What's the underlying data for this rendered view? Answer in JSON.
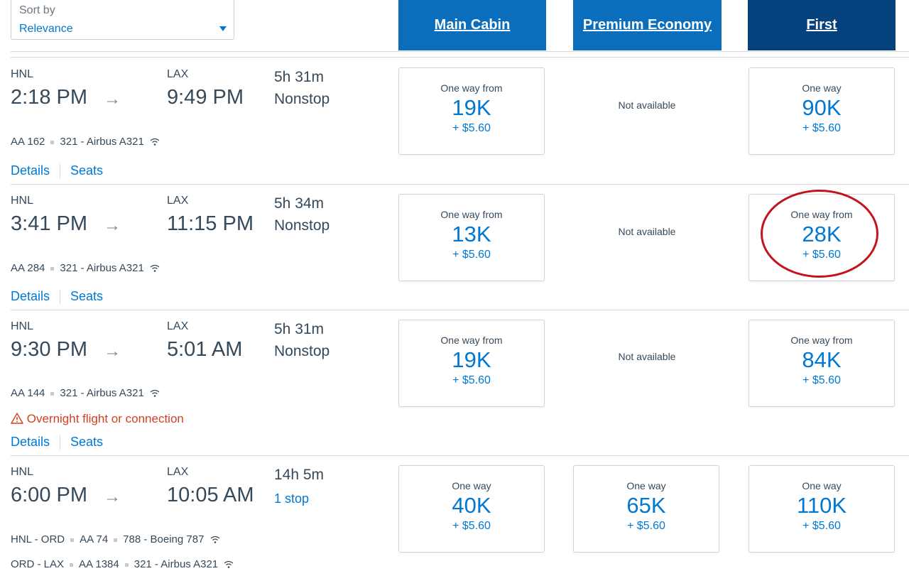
{
  "sort": {
    "label": "Sort by",
    "value": "Relevance"
  },
  "columns": {
    "main": "Main Cabin",
    "premium": "Premium Economy",
    "first": "First"
  },
  "rows": [
    {
      "origin": "HNL",
      "depart": "2:18 PM",
      "dest": "LAX",
      "arrive": "9:49 PM",
      "duration": "5h 31m",
      "stops": "Nonstop",
      "segments": [
        {
          "route": "",
          "flight": "AA 162",
          "aircraft": "321 - Airbus A321"
        }
      ],
      "details": "Details",
      "seats": "Seats",
      "main": {
        "from": "One way from",
        "miles": "19K",
        "tax": "+ $5.60"
      },
      "premium": {
        "na": "Not available"
      },
      "first": {
        "from": "One way",
        "miles": "90K",
        "tax": "+ $5.60"
      }
    },
    {
      "origin": "HNL",
      "depart": "3:41 PM",
      "dest": "LAX",
      "arrive": "11:15 PM",
      "duration": "5h 34m",
      "stops": "Nonstop",
      "segments": [
        {
          "route": "",
          "flight": "AA 284",
          "aircraft": "321 - Airbus A321"
        }
      ],
      "details": "Details",
      "seats": "Seats",
      "main": {
        "from": "One way from",
        "miles": "13K",
        "tax": "+ $5.60"
      },
      "premium": {
        "na": "Not available"
      },
      "first": {
        "from": "One way from",
        "miles": "28K",
        "tax": "+ $5.60"
      }
    },
    {
      "origin": "HNL",
      "depart": "9:30 PM",
      "dest": "LAX",
      "arrive": "5:01 AM",
      "duration": "5h 31m",
      "stops": "Nonstop",
      "segments": [
        {
          "route": "",
          "flight": "AA 144",
          "aircraft": "321 - Airbus A321"
        }
      ],
      "warning": "Overnight flight or connection",
      "details": "Details",
      "seats": "Seats",
      "main": {
        "from": "One way from",
        "miles": "19K",
        "tax": "+ $5.60"
      },
      "premium": {
        "na": "Not available"
      },
      "first": {
        "from": "One way from",
        "miles": "84K",
        "tax": "+ $5.60"
      }
    },
    {
      "origin": "HNL",
      "depart": "6:00 PM",
      "dest": "LAX",
      "arrive": "10:05 AM",
      "duration": "14h 5m",
      "stops": "1 stop",
      "segments": [
        {
          "route": "HNL - ORD",
          "flight": "AA 74",
          "aircraft": "788 - Boeing 787"
        },
        {
          "route": "ORD - LAX",
          "flight": "AA 1384",
          "aircraft": "321 - Airbus A321"
        }
      ],
      "main": {
        "from": "One way",
        "miles": "40K",
        "tax": "+ $5.60"
      },
      "premium": {
        "from": "One way",
        "miles": "65K",
        "tax": "+ $5.60"
      },
      "first": {
        "from": "One way",
        "miles": "110K",
        "tax": "+ $5.60"
      }
    }
  ],
  "colors": {
    "accent": "#0078d2",
    "header": "#0a6ebd",
    "header_first": "#05417c",
    "warning": "#d14124",
    "highlight": "#c3141b"
  }
}
